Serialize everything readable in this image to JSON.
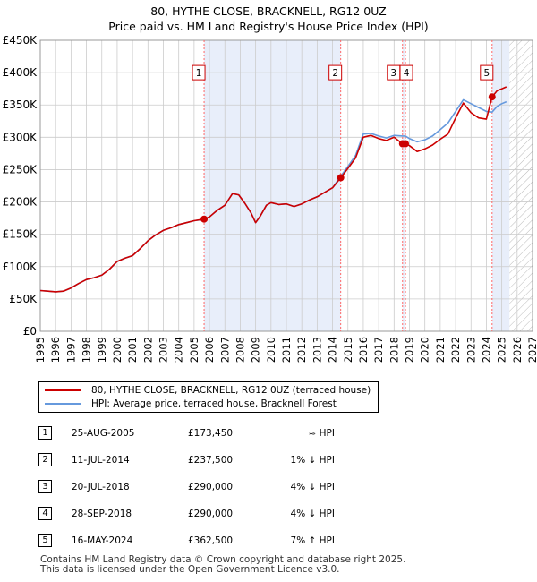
{
  "title_line1": "80, HYTHE CLOSE, BRACKNELL, RG12 0UZ",
  "title_line2": "Price paid vs. HM Land Registry's House Price Index (HPI)",
  "colors": {
    "price_line": "#cc0000",
    "hpi_line": "#6699dd",
    "ownership_band": "#e8eefa",
    "marker": "#cc0000",
    "grid": "#cccccc",
    "dashed_marker_line": "#ff6666"
  },
  "legend": {
    "price_label": "80, HYTHE CLOSE, BRACKNELL, RG12 0UZ (terraced house)",
    "hpi_label": "HPI: Average price, terraced house, Bracknell Forest"
  },
  "sales": [
    {
      "num": "1",
      "date": "25-AUG-2005",
      "price": "£173,450",
      "hpi": "≈ HPI"
    },
    {
      "num": "2",
      "date": "11-JUL-2014",
      "price": "£237,500",
      "hpi": "1% ↓ HPI"
    },
    {
      "num": "3",
      "date": "20-JUL-2018",
      "price": "£290,000",
      "hpi": "4% ↓ HPI"
    },
    {
      "num": "4",
      "date": "28-SEP-2018",
      "price": "£290,000",
      "hpi": "4% ↓ HPI"
    },
    {
      "num": "5",
      "date": "16-MAY-2024",
      "price": "£362,500",
      "hpi": "7% ↑ HPI"
    }
  ],
  "footer": {
    "line1": "Contains HM Land Registry data © Crown copyright and database right 2025.",
    "line2": "This data is licensed under the Open Government Licence v3.0."
  },
  "chart_data": {
    "type": "line",
    "title": "80, HYTHE CLOSE, BRACKNELL, RG12 0UZ — Price paid vs. HM Land Registry's House Price Index (HPI)",
    "xlim": [
      1995,
      2027
    ],
    "ylim": [
      0,
      450000
    ],
    "y_ticks": [
      0,
      50000,
      100000,
      150000,
      200000,
      250000,
      300000,
      350000,
      400000,
      450000
    ],
    "y_tick_labels": [
      "£0",
      "£50K",
      "£100K",
      "£150K",
      "£200K",
      "£250K",
      "£300K",
      "£350K",
      "£400K",
      "£450K"
    ],
    "x_ticks": [
      1995,
      1996,
      1997,
      1998,
      1999,
      2000,
      2001,
      2002,
      2003,
      2004,
      2005,
      2006,
      2007,
      2008,
      2009,
      2010,
      2011,
      2012,
      2013,
      2014,
      2015,
      2016,
      2017,
      2018,
      2019,
      2020,
      2021,
      2022,
      2023,
      2024,
      2025,
      2026,
      2027
    ],
    "x_tick_labels": [
      "1995",
      "1996",
      "1997",
      "1998",
      "1999",
      "2000",
      "2001",
      "2002",
      "2003",
      "2004",
      "2005",
      "2006",
      "2007",
      "2008",
      "2009",
      "2010",
      "2011",
      "2012",
      "2013",
      "2014",
      "2015",
      "2016",
      "2017",
      "2018",
      "2019",
      "2020",
      "2021",
      "2022",
      "2023",
      "2024",
      "2025",
      "2026",
      "2027"
    ],
    "forecast_start": 2025.5,
    "shaded_bands": [
      [
        2005.65,
        2014.53
      ],
      [
        2018.55,
        2018.74
      ],
      [
        2024.37,
        2025.5
      ]
    ],
    "sale_markers": [
      {
        "label": "1",
        "x": 2005.65,
        "y": 173450
      },
      {
        "label": "2",
        "x": 2014.53,
        "y": 237500
      },
      {
        "label": "3",
        "x": 2018.55,
        "y": 290000
      },
      {
        "label": "4",
        "x": 2018.74,
        "y": 290000
      },
      {
        "label": "5",
        "x": 2024.37,
        "y": 362500
      }
    ],
    "series": [
      {
        "name": "80, HYTHE CLOSE, BRACKNELL, RG12 0UZ (terraced house)",
        "color": "#cc0000",
        "x": [
          1995,
          1995.5,
          1996,
          1996.5,
          1997,
          1997.5,
          1998,
          1998.5,
          1999,
          1999.5,
          2000,
          2000.5,
          2001,
          2001.5,
          2002,
          2002.5,
          2003,
          2003.5,
          2004,
          2004.5,
          2005,
          2005.65,
          2006,
          2006.5,
          2007,
          2007.5,
          2007.9,
          2008.3,
          2008.7,
          2009,
          2009.3,
          2009.7,
          2010,
          2010.5,
          2011,
          2011.5,
          2012,
          2012.5,
          2013,
          2013.5,
          2014,
          2014.53,
          2015,
          2015.5,
          2016,
          2016.5,
          2017,
          2017.5,
          2018,
          2018.55,
          2018.74,
          2019,
          2019.5,
          2020,
          2020.5,
          2021,
          2021.5,
          2022,
          2022.5,
          2023,
          2023.5,
          2024,
          2024.37,
          2024.7,
          2025,
          2025.3
        ],
        "y": [
          63000,
          62000,
          61000,
          62000,
          67000,
          74000,
          80000,
          83000,
          87000,
          96000,
          108000,
          113000,
          117000,
          128000,
          140000,
          149000,
          156000,
          160000,
          165000,
          168000,
          171000,
          173450,
          177000,
          187000,
          195000,
          213000,
          211000,
          198000,
          183000,
          168000,
          178000,
          195000,
          199000,
          196000,
          197000,
          193000,
          197000,
          203000,
          208000,
          215000,
          222000,
          237500,
          252000,
          268000,
          300000,
          303000,
          298000,
          295000,
          300000,
          290000,
          290000,
          287000,
          278000,
          282000,
          288000,
          297000,
          305000,
          330000,
          353000,
          338000,
          330000,
          328000,
          362500,
          372000,
          375000,
          378000
        ]
      },
      {
        "name": "HPI: Average price, terraced house, Bracknell Forest",
        "color": "#6699dd",
        "x": [
          1995,
          1995.5,
          1996,
          1996.5,
          1997,
          1997.5,
          1998,
          1998.5,
          1999,
          1999.5,
          2000,
          2000.5,
          2001,
          2001.5,
          2002,
          2002.5,
          2003,
          2003.5,
          2004,
          2004.5,
          2005,
          2005.65,
          2006,
          2006.5,
          2007,
          2007.5,
          2007.9,
          2008.3,
          2008.7,
          2009,
          2009.3,
          2009.7,
          2010,
          2010.5,
          2011,
          2011.5,
          2012,
          2012.5,
          2013,
          2013.5,
          2014,
          2014.53,
          2015,
          2015.5,
          2016,
          2016.5,
          2017,
          2017.5,
          2018,
          2018.55,
          2018.74,
          2019,
          2019.5,
          2020,
          2020.5,
          2021,
          2021.5,
          2022,
          2022.5,
          2023,
          2023.5,
          2024,
          2024.37,
          2024.7,
          2025,
          2025.3
        ],
        "y": [
          63000,
          62000,
          61000,
          62000,
          67000,
          74000,
          80000,
          83000,
          87000,
          96000,
          108000,
          113000,
          117000,
          128000,
          140000,
          149000,
          156000,
          160000,
          165000,
          168000,
          171000,
          173000,
          177000,
          187000,
          195000,
          213000,
          211000,
          198000,
          183000,
          168000,
          178000,
          195000,
          199000,
          196000,
          197000,
          193000,
          197000,
          203000,
          208000,
          215000,
          222000,
          240000,
          255000,
          272000,
          305000,
          306000,
          302000,
          299000,
          303000,
          302000,
          302000,
          298000,
          293000,
          296000,
          302000,
          312000,
          322000,
          340000,
          358000,
          352000,
          346000,
          340000,
          339000,
          348000,
          352000,
          355000
        ]
      }
    ]
  }
}
